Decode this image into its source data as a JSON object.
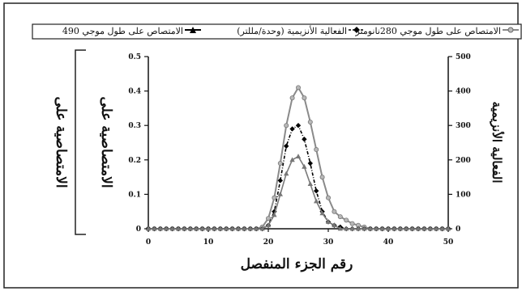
{
  "chart_data": {
    "type": "line",
    "xlabel": "رقم الجزء المنفصل",
    "ylabel_left_outer": "الامتصاصية على",
    "ylabel_left_inner": "الامتصاصية على",
    "ylabel_right": "الفعالية الأنزيمية",
    "xlim": [
      0,
      50
    ],
    "ylim_left": [
      0,
      0.5
    ],
    "ylim_right": [
      0,
      500
    ],
    "x_ticks": [
      "0",
      "10",
      "20",
      "30",
      "40",
      "50"
    ],
    "y_left_ticks": [
      "0",
      "0.1",
      "0.2",
      "0.3",
      "0.4",
      "0.5"
    ],
    "y_right_ticks": [
      "0",
      "100",
      "200",
      "300",
      "400",
      "500"
    ],
    "legend": [
      "الامتصاص على طول موجي 280نانومتر",
      "الفعالية الأنزيمية (وحدة/مللتر)",
      "الامتصاص على طول موجي 490"
    ],
    "x": [
      0,
      1,
      2,
      3,
      4,
      5,
      6,
      7,
      8,
      9,
      10,
      11,
      12,
      13,
      14,
      15,
      16,
      17,
      18,
      19,
      20,
      21,
      22,
      23,
      24,
      25,
      26,
      27,
      28,
      29,
      30,
      31,
      32,
      33,
      34,
      35,
      36,
      37,
      38,
      39,
      40,
      41,
      42,
      43,
      44,
      45,
      46,
      47,
      48,
      49,
      50
    ],
    "series": [
      {
        "axis": "left",
        "color": "#8a8a8a",
        "marker": "circle",
        "values": [
          0,
          0,
          0,
          0,
          0,
          0,
          0,
          0,
          0,
          0,
          0,
          0,
          0,
          0,
          0,
          0,
          0,
          0,
          0,
          0.005,
          0.03,
          0.09,
          0.19,
          0.3,
          0.38,
          0.41,
          0.38,
          0.31,
          0.23,
          0.15,
          0.09,
          0.05,
          0.035,
          0.025,
          0.015,
          0.01,
          0.005,
          0,
          0,
          0,
          0,
          0,
          0,
          0,
          0,
          0,
          0,
          0,
          0,
          0,
          0
        ]
      },
      {
        "axis": "right",
        "color": "#000000",
        "marker": "diamond",
        "values": [
          0,
          0,
          0,
          0,
          0,
          0,
          0,
          0,
          0,
          0,
          0,
          0,
          0,
          0,
          0,
          0,
          0,
          0,
          0,
          0,
          10,
          50,
          140,
          240,
          290,
          300,
          260,
          190,
          110,
          50,
          20,
          10,
          5,
          0,
          0,
          0,
          0,
          0,
          0,
          0,
          0,
          0,
          0,
          0,
          0,
          0,
          0,
          0,
          0,
          0,
          0
        ]
      },
      {
        "axis": "left",
        "color": "#7a7a7a",
        "marker": "triangle",
        "values": [
          0,
          0,
          0,
          0,
          0,
          0,
          0,
          0,
          0,
          0,
          0,
          0,
          0,
          0,
          0,
          0,
          0,
          0,
          0,
          0,
          0.01,
          0.04,
          0.1,
          0.16,
          0.2,
          0.21,
          0.18,
          0.13,
          0.08,
          0.045,
          0.02,
          0.01,
          0,
          0,
          0,
          0,
          0,
          0,
          0,
          0,
          0,
          0,
          0,
          0,
          0,
          0,
          0,
          0,
          0,
          0,
          0
        ]
      }
    ]
  }
}
